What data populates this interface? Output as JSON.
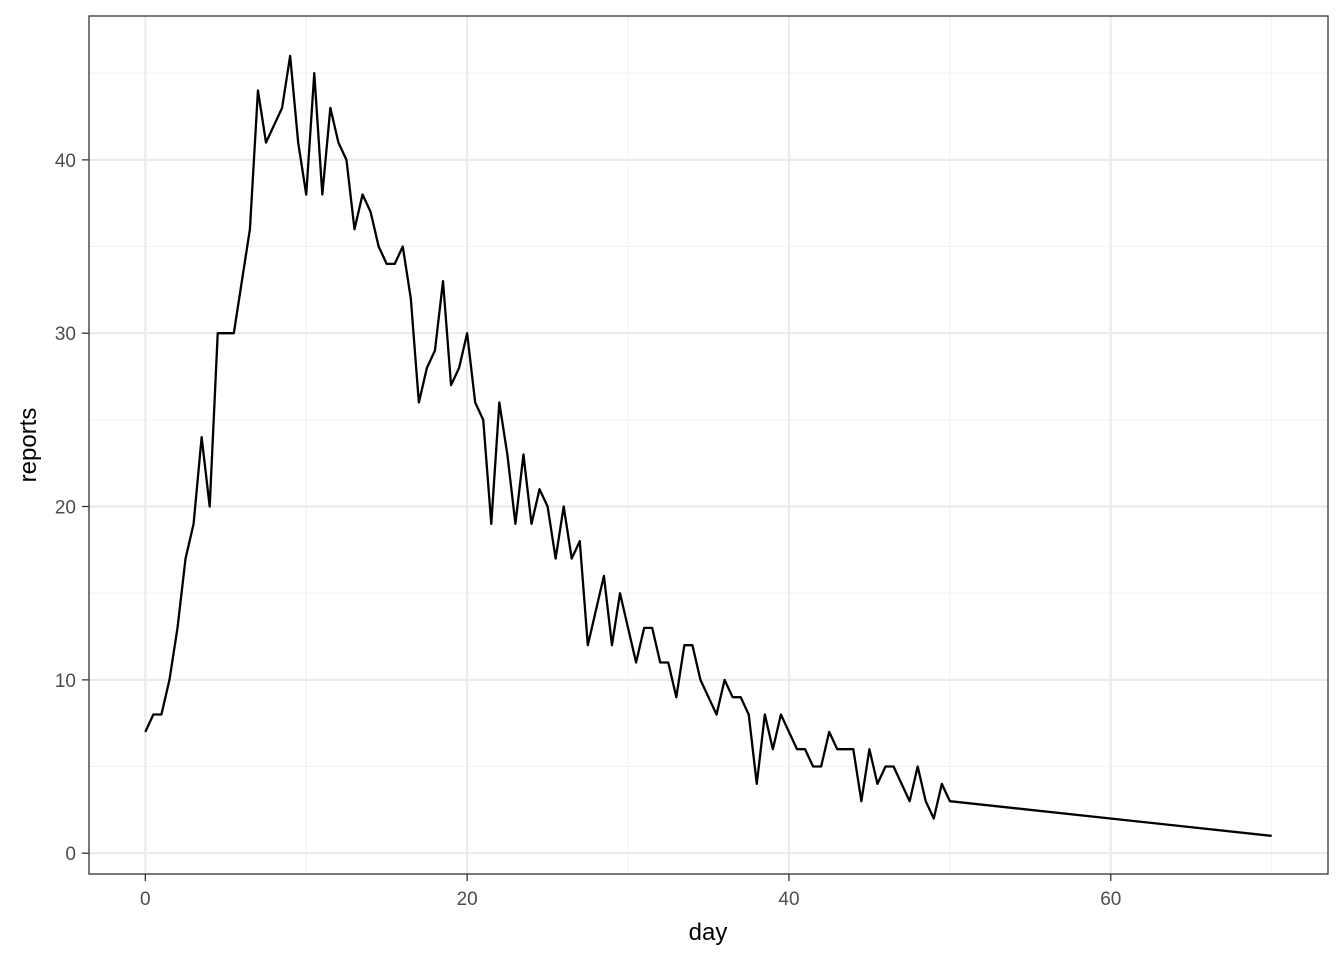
{
  "chart_data": {
    "type": "line",
    "xlabel": "day",
    "ylabel": "reports",
    "xlim": [
      -3.5,
      73.5
    ],
    "ylim": [
      -1.2,
      48.3
    ],
    "x_major_ticks": [
      0,
      20,
      40,
      60
    ],
    "y_major_ticks": [
      0,
      10,
      20,
      30,
      40
    ],
    "x_minor_grid": [
      10,
      30,
      50,
      70
    ],
    "y_minor_grid": [
      5,
      15,
      25,
      35,
      45
    ],
    "x_tick_labels": [
      "0",
      "20",
      "40",
      "60"
    ],
    "y_tick_labels": [
      "0",
      "10",
      "20",
      "30",
      "40"
    ],
    "grid": true,
    "colors": {
      "line": "#000000",
      "grid_major": "#ebebeb",
      "grid_minor": "#f2f2f2",
      "panel_border": "#333333"
    },
    "series": [
      {
        "x": [
          0,
          0.5,
          1,
          1.5,
          2,
          2.5,
          3,
          3.5,
          4,
          4.5,
          5,
          5.5,
          6,
          6.5,
          7,
          7.5,
          8,
          8.5,
          9,
          9.5,
          10,
          10.5,
          11,
          11.5,
          12,
          12.5,
          13,
          13.5,
          14,
          14.5,
          15,
          15.5,
          16,
          16.5,
          17,
          17.5,
          18,
          18.5,
          19,
          19.5,
          20,
          20.5,
          21,
          21.5,
          22,
          22.5,
          23,
          23.5,
          24,
          24.5,
          25,
          25.5,
          26,
          26.5,
          27,
          27.5,
          28,
          28.5,
          29,
          29.5,
          30,
          30.5,
          31,
          31.5,
          32,
          32.5,
          33,
          33.5,
          34,
          34.5,
          35,
          35.5,
          36,
          36.5,
          37,
          37.5,
          38,
          38.5,
          39,
          39.5,
          40,
          40.5,
          41,
          41.5,
          42,
          42.5,
          43,
          43.5,
          44,
          44.5,
          45,
          45.5,
          46,
          46.5,
          47,
          47.5,
          48,
          48.5,
          49,
          49.5,
          50,
          70
        ],
        "values": [
          7,
          8,
          8,
          10,
          13,
          17,
          19,
          24,
          20,
          30,
          30,
          30,
          33,
          36,
          44,
          41,
          42,
          43,
          46,
          41,
          38,
          45,
          38,
          43,
          41,
          40,
          36,
          38,
          37,
          35,
          34,
          34,
          35,
          32,
          26,
          28,
          29,
          33,
          27,
          28,
          30,
          26,
          25,
          19,
          26,
          23,
          19,
          23,
          19,
          21,
          20,
          17,
          20,
          17,
          18,
          12,
          14,
          16,
          12,
          15,
          13,
          11,
          13,
          13,
          11,
          11,
          9,
          12,
          12,
          10,
          9,
          8,
          10,
          9,
          9,
          8,
          4,
          8,
          6,
          8,
          7,
          6,
          6,
          5,
          5,
          7,
          6,
          6,
          6,
          3,
          6,
          4,
          5,
          5,
          4,
          3,
          5,
          3,
          2,
          4,
          3,
          1
        ]
      }
    ]
  }
}
